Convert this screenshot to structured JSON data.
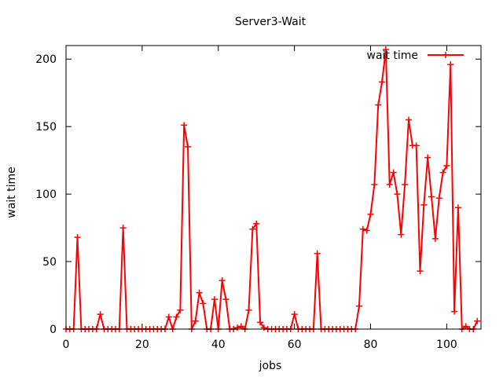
{
  "chart_data": {
    "type": "line",
    "title": "Server3-Wait",
    "xlabel": "jobs",
    "ylabel": "wait time",
    "xlim": [
      0,
      109
    ],
    "ylim": [
      0,
      210
    ],
    "xticks": [
      0,
      20,
      40,
      60,
      80,
      100
    ],
    "yticks": [
      0,
      50,
      100,
      150,
      200
    ],
    "grid": false,
    "legend_position": "top-right",
    "series_color": "#ff0000",
    "series": [
      {
        "name": "wait time",
        "x": [
          0,
          1,
          2,
          3,
          4,
          5,
          6,
          7,
          8,
          9,
          10,
          11,
          12,
          13,
          14,
          15,
          16,
          17,
          18,
          19,
          20,
          21,
          22,
          23,
          24,
          25,
          26,
          27,
          28,
          29,
          30,
          31,
          32,
          33,
          34,
          35,
          36,
          37,
          38,
          39,
          40,
          41,
          42,
          43,
          44,
          45,
          46,
          47,
          48,
          49,
          50,
          51,
          52,
          53,
          54,
          55,
          56,
          57,
          58,
          59,
          60,
          61,
          62,
          63,
          64,
          65,
          66,
          67,
          68,
          69,
          70,
          71,
          72,
          73,
          74,
          75,
          76,
          77,
          78,
          79,
          80,
          81,
          82,
          83,
          84,
          85,
          86,
          87,
          88,
          89,
          90,
          91,
          92,
          93,
          94,
          95,
          96,
          97,
          98,
          99,
          100,
          101,
          102,
          103,
          104,
          105,
          106,
          107,
          108
        ],
        "values": [
          0,
          0,
          0,
          68,
          0,
          0,
          0,
          0,
          0,
          11,
          0,
          0,
          0,
          0,
          0,
          75,
          0,
          0,
          0,
          0,
          0,
          0,
          0,
          0,
          0,
          0,
          0,
          9,
          0,
          9,
          14,
          151,
          135,
          0,
          6,
          27,
          19,
          0,
          0,
          22,
          0,
          36,
          22,
          0,
          0,
          1,
          2,
          0,
          14,
          74,
          78,
          5,
          1,
          0,
          0,
          0,
          0,
          0,
          0,
          0,
          11,
          0,
          0,
          0,
          0,
          0,
          56,
          0,
          0,
          0,
          0,
          0,
          0,
          0,
          0,
          0,
          0,
          17,
          74,
          73,
          85,
          107,
          166,
          183,
          207,
          107,
          116,
          100,
          70,
          107,
          155,
          136,
          136,
          43,
          92,
          127,
          98,
          67,
          97,
          116,
          121,
          196,
          13,
          90,
          0,
          2,
          0,
          0,
          6
        ]
      }
    ]
  }
}
